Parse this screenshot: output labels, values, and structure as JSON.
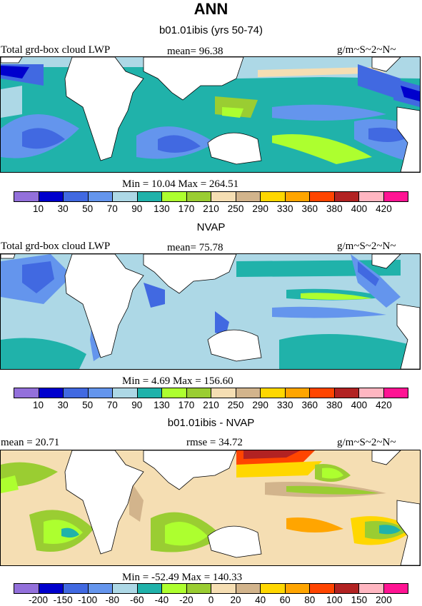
{
  "title": "ANN",
  "panels": [
    {
      "subtitle": "b01.01ibis (yrs 50-74)",
      "left_label": "Total grd-box cloud LWP",
      "mean_label": "mean=  96.38",
      "units": "g/m~S~2~N~",
      "minmax": "Min =  10.04 Max = 264.51",
      "colorbar_labels": [
        "10",
        "30",
        "50",
        "70",
        "90",
        "130",
        "170",
        "210",
        "250",
        "290",
        "330",
        "360",
        "380",
        "400",
        "420"
      ]
    },
    {
      "subtitle": "NVAP",
      "left_label": "Total grd-box cloud LWP",
      "mean_label": "mean=  75.78",
      "units": "g/m~S~2~N~",
      "minmax": "Min =   4.69 Max = 156.60",
      "colorbar_labels": [
        "10",
        "30",
        "50",
        "70",
        "90",
        "130",
        "170",
        "210",
        "250",
        "290",
        "330",
        "360",
        "380",
        "400",
        "420"
      ]
    },
    {
      "subtitle": "b01.01ibis - NVAP",
      "left_label": "mean =  20.71",
      "mean_label": "rmse =  34.72",
      "units": "g/m~S~2~N~",
      "minmax": "Min = -52.49 Max = 140.33",
      "colorbar_labels": [
        "-200",
        "-150",
        "-100",
        "-80",
        "-60",
        "-40",
        "-20",
        "0",
        "20",
        "40",
        "60",
        "80",
        "100",
        "150",
        "200"
      ]
    }
  ],
  "palette": [
    "#9370db",
    "#0000cd",
    "#4169e1",
    "#6495ed",
    "#add8e6",
    "#20b2aa",
    "#adff2f",
    "#9acd32",
    "#f5deb3",
    "#d2b48c",
    "#ffd700",
    "#ffa500",
    "#ff4500",
    "#b22222",
    "#ffb6c1",
    "#ff1493"
  ]
}
